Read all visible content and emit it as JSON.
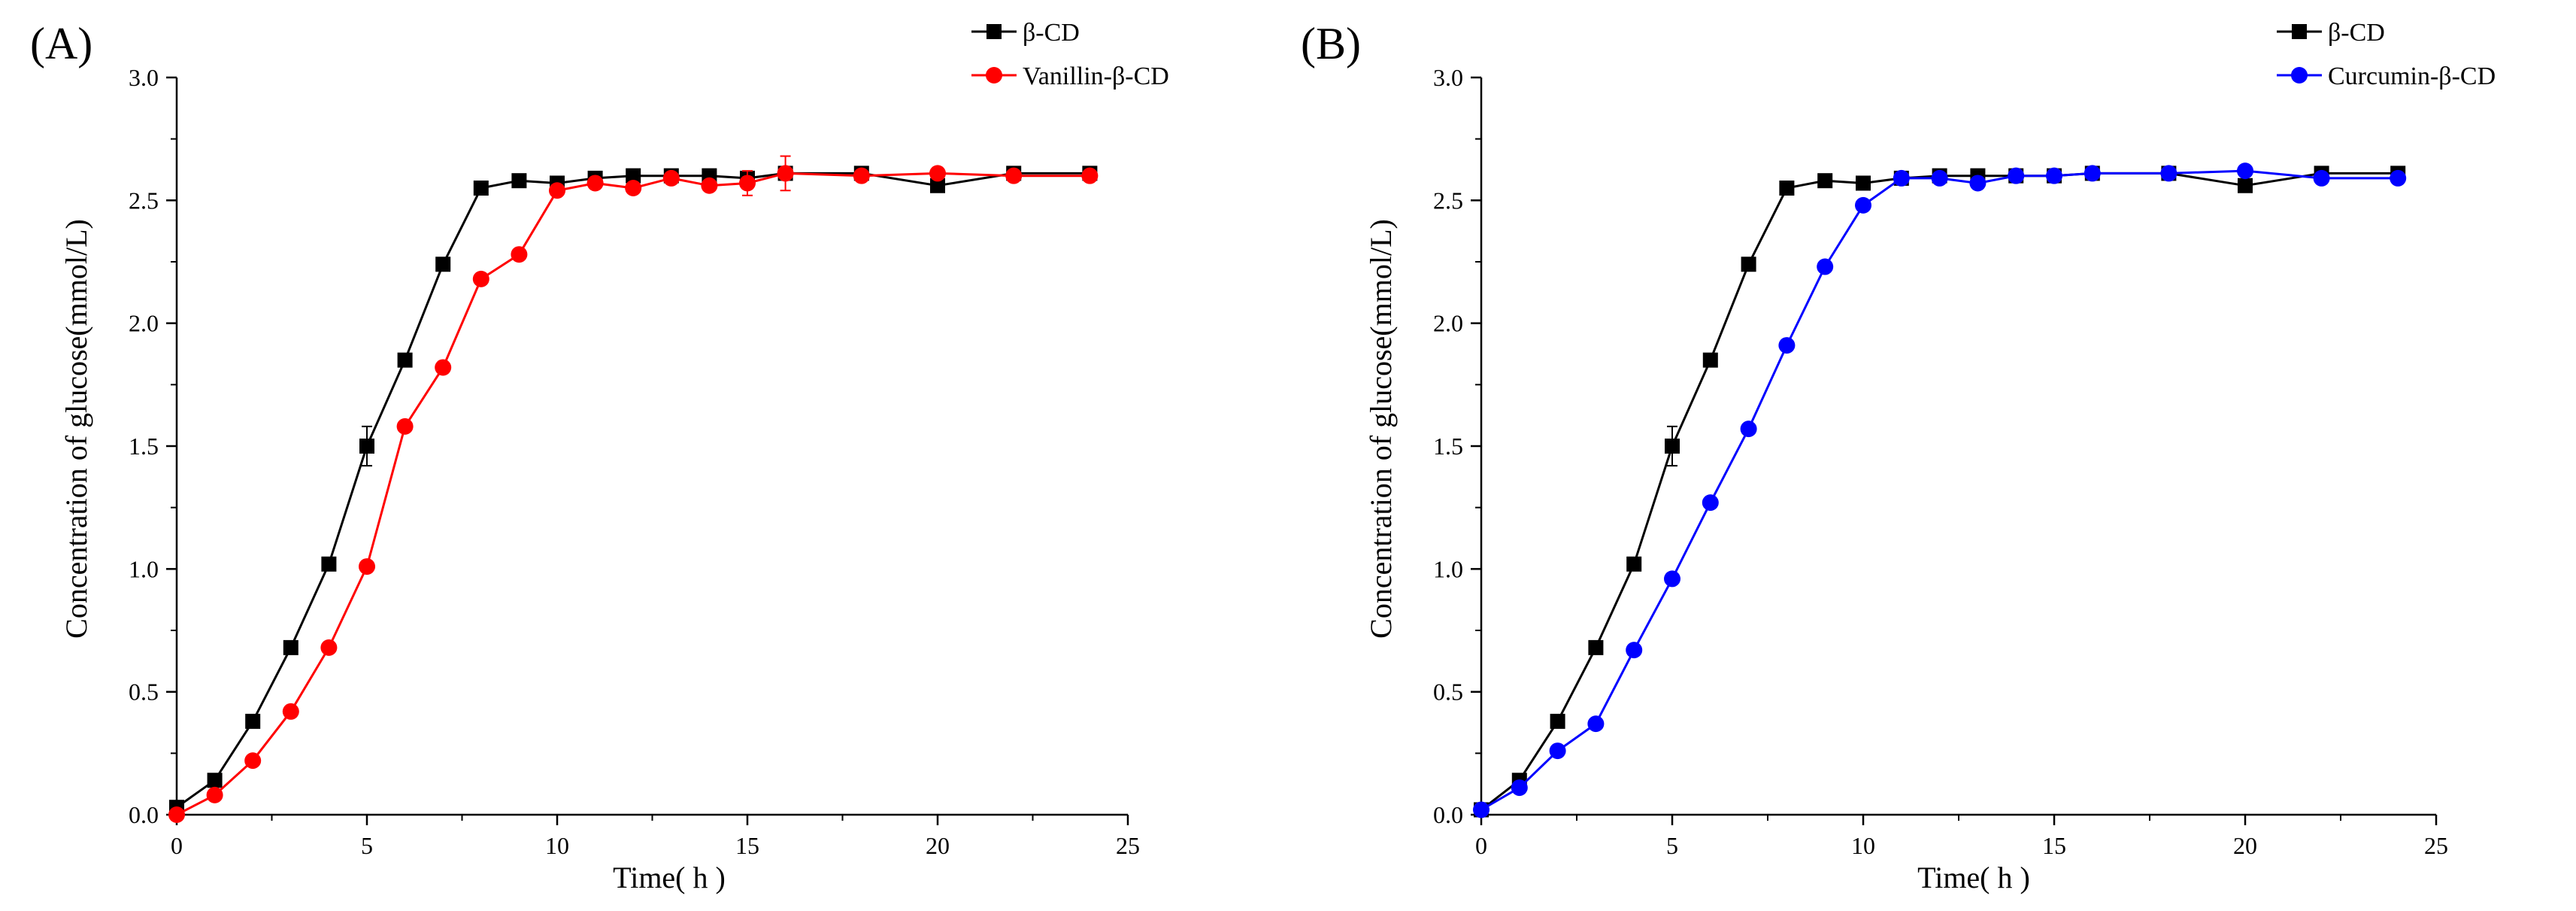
{
  "figure": {
    "background": "#ffffff"
  },
  "chart_data": [
    {
      "type": "line",
      "panel_label": "(A)",
      "xlabel": "Time( h )",
      "ylabel": "Concentration of glucose(mmol/L)",
      "xlim": [
        0,
        25
      ],
      "ylim": [
        0,
        3.0
      ],
      "xticks": [
        0,
        5,
        10,
        15,
        20,
        25
      ],
      "yticks": [
        0.0,
        0.5,
        1.0,
        1.5,
        2.0,
        2.5,
        3.0
      ],
      "xtick_labels": [
        "0",
        "5",
        "10",
        "15",
        "20",
        "25"
      ],
      "ytick_labels": [
        "0.0",
        "0.5",
        "1.0",
        "1.5",
        "2.0",
        "2.5",
        "3.0"
      ],
      "grid": false,
      "legend_position": "top-right",
      "series": [
        {
          "name": "β-CD",
          "color": "#000000",
          "marker": "square",
          "x": [
            0,
            1,
            2,
            3,
            4,
            5,
            6,
            7,
            8,
            9,
            10,
            11,
            12,
            13,
            14,
            15,
            16,
            18,
            20,
            22,
            24
          ],
          "y": [
            0.03,
            0.14,
            0.38,
            0.68,
            1.02,
            1.5,
            1.85,
            2.24,
            2.55,
            2.58,
            2.57,
            2.59,
            2.6,
            2.6,
            2.6,
            2.59,
            2.61,
            2.61,
            2.56,
            2.61,
            2.61
          ],
          "error": [
            0,
            0,
            0,
            0,
            0,
            0.08,
            0,
            0,
            0,
            0,
            0,
            0,
            0,
            0,
            0,
            0,
            0,
            0,
            0,
            0,
            0
          ]
        },
        {
          "name": "Vanillin-β-CD",
          "color": "#ff0000",
          "marker": "circle",
          "x": [
            0,
            1,
            2,
            3,
            4,
            5,
            6,
            7,
            8,
            9,
            10,
            11,
            12,
            13,
            14,
            15,
            16,
            18,
            20,
            22,
            24
          ],
          "y": [
            0.0,
            0.08,
            0.22,
            0.42,
            0.68,
            1.01,
            1.58,
            1.82,
            2.18,
            2.28,
            2.54,
            2.57,
            2.55,
            2.59,
            2.56,
            2.57,
            2.61,
            2.6,
            2.61,
            2.6,
            2.6
          ],
          "error": [
            0,
            0,
            0,
            0,
            0,
            0,
            0,
            0,
            0,
            0,
            0,
            0,
            0,
            0,
            0,
            0.05,
            0.07,
            0,
            0,
            0,
            0
          ]
        }
      ]
    },
    {
      "type": "line",
      "panel_label": "(B)",
      "xlabel": "Time( h )",
      "ylabel": "Concentration of glucose(mmol/L)",
      "xlim": [
        0,
        25
      ],
      "ylim": [
        0,
        3.0
      ],
      "xticks": [
        0,
        5,
        10,
        15,
        20,
        25
      ],
      "yticks": [
        0.0,
        0.5,
        1.0,
        1.5,
        2.0,
        2.5,
        3.0
      ],
      "xtick_labels": [
        "0",
        "5",
        "10",
        "15",
        "20",
        "25"
      ],
      "ytick_labels": [
        "0.0",
        "0.5",
        "1.0",
        "1.5",
        "2.0",
        "2.5",
        "3.0"
      ],
      "grid": false,
      "legend_position": "top-right",
      "series": [
        {
          "name": "β-CD",
          "color": "#000000",
          "marker": "square",
          "x": [
            0,
            1,
            2,
            3,
            4,
            5,
            6,
            7,
            8,
            9,
            10,
            11,
            12,
            13,
            14,
            15,
            16,
            18,
            20,
            22,
            24
          ],
          "y": [
            0.02,
            0.14,
            0.38,
            0.68,
            1.02,
            1.5,
            1.85,
            2.24,
            2.55,
            2.58,
            2.57,
            2.59,
            2.6,
            2.6,
            2.6,
            2.6,
            2.61,
            2.61,
            2.56,
            2.61,
            2.61
          ],
          "error": [
            0,
            0,
            0,
            0,
            0,
            0.08,
            0,
            0,
            0,
            0,
            0,
            0,
            0,
            0,
            0,
            0,
            0,
            0,
            0,
            0,
            0
          ]
        },
        {
          "name": "Curcumin-β-CD",
          "color": "#0000ff",
          "marker": "circle",
          "x": [
            0,
            1,
            2,
            3,
            4,
            5,
            6,
            7,
            8,
            9,
            10,
            11,
            12,
            13,
            14,
            15,
            16,
            18,
            20,
            22,
            24
          ],
          "y": [
            0.02,
            0.11,
            0.26,
            0.37,
            0.67,
            0.96,
            1.27,
            1.57,
            1.91,
            2.23,
            2.48,
            2.59,
            2.59,
            2.57,
            2.6,
            2.6,
            2.61,
            2.61,
            2.62,
            2.59,
            2.59
          ],
          "error": [
            0,
            0,
            0,
            0,
            0,
            0,
            0,
            0,
            0,
            0,
            0,
            0,
            0,
            0,
            0,
            0,
            0,
            0,
            0,
            0,
            0
          ]
        }
      ]
    }
  ]
}
